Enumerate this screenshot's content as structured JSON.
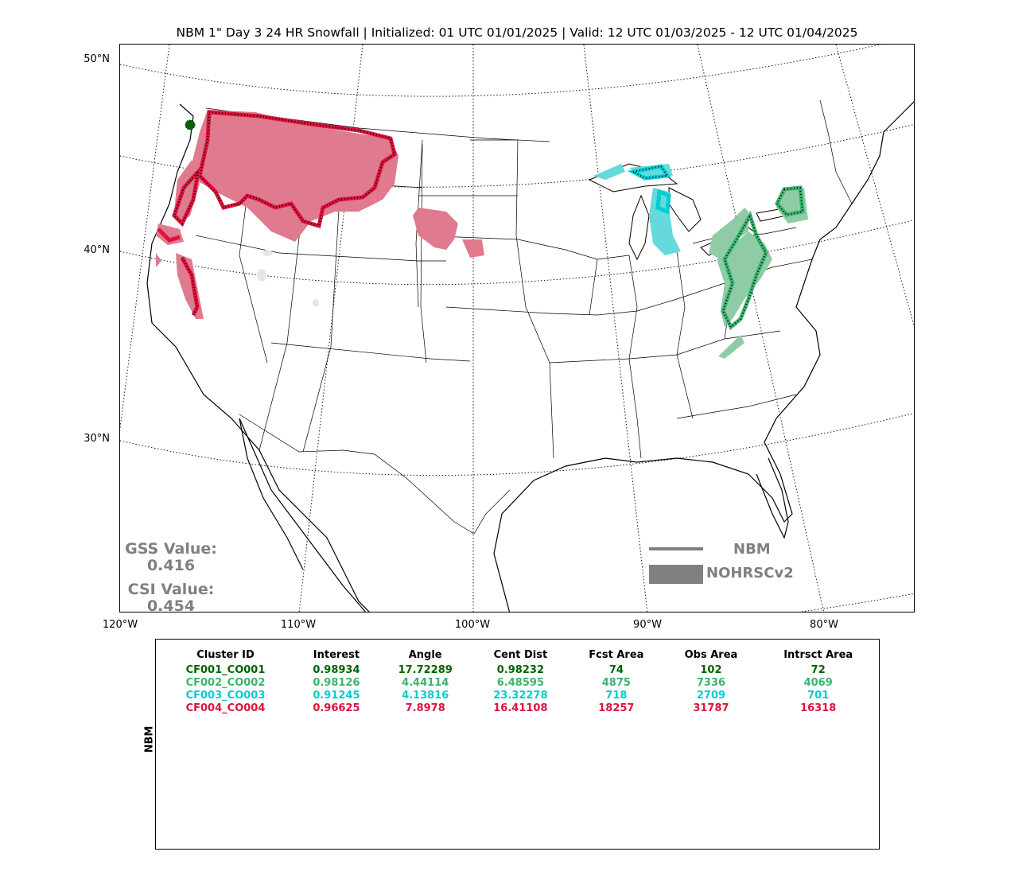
{
  "title": "NBM 1\" Day 3 24 HR Snowfall | Initialized: 01 UTC 01/01/2025 | Valid: 12 UTC 01/03/2025 - 12 UTC 01/04/2025",
  "lat_labels": [
    "50°N",
    "40°N",
    "30°N"
  ],
  "lon_labels": [
    "120°W",
    "110°W",
    "100°W",
    "90°W",
    "80°W"
  ],
  "scores": {
    "gss_label": "GSS Value:",
    "gss_value": "0.416",
    "csi_label": "CSI Value:",
    "csi_value": "0.454"
  },
  "legend": {
    "line_label": "NBM",
    "fill_label": "NOHRSCv2",
    "color": "#808080"
  },
  "colors": {
    "cluster1": "#006400",
    "cluster2": "#3cb371",
    "cluster3": "#00ced1",
    "cluster4": "#dc143c",
    "cluster2_fill": "#8fcca6",
    "cluster3_fill": "#66d9dc",
    "cluster4_fill": "#e07a8e"
  },
  "table": {
    "side_label": "NBM",
    "headers": [
      "Cluster ID",
      "Interest",
      "Angle",
      "Cent Dist",
      "Fcst Area",
      "Obs Area",
      "Intrsct Area"
    ],
    "rows": [
      {
        "color": "#006400",
        "cells": [
          "CF001_CO001",
          "0.98934",
          "17.72289",
          "0.98232",
          "74",
          "102",
          "72"
        ]
      },
      {
        "color": "#3cb371",
        "cells": [
          "CF002_CO002",
          "0.98126",
          "4.44114",
          "6.48595",
          "4875",
          "7336",
          "4069"
        ]
      },
      {
        "color": "#00ced1",
        "cells": [
          "CF003_CO003",
          "0.91245",
          "4.13816",
          "23.32278",
          "718",
          "2709",
          "701"
        ]
      },
      {
        "color": "#dc143c",
        "cells": [
          "CF004_CO004",
          "0.96625",
          "7.8978",
          "16.41108",
          "18257",
          "31787",
          "16318"
        ]
      }
    ]
  }
}
